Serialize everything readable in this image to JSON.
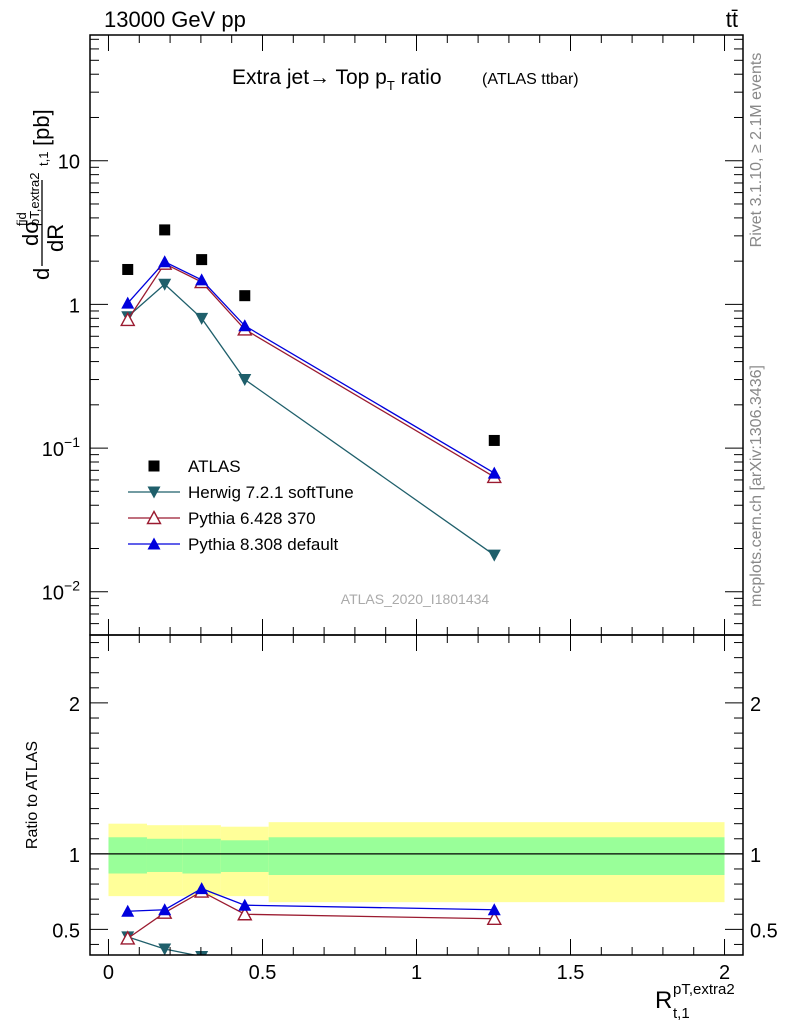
{
  "header": {
    "left": "13000 GeV pp",
    "right": "tt̄"
  },
  "side_labels": {
    "rivet": "Rivet 3.1.10, ≥ 2.1M events",
    "mcplots": "mcplots.cern.ch [arXiv:1306.3436]"
  },
  "chart_data": [
    {
      "type": "scatter",
      "title": "Extra jet→ Top p_T ratio",
      "title_parts": {
        "main": "Extra jet",
        "arrow": "→",
        "rest": " Top p",
        "sub": "T",
        "after": " ratio",
        "small": "(ATLAS ttbar)"
      },
      "watermark": "ATLAS_2020_I1801434",
      "ylabel": "dσ^fid_{pT,extra2} / dR_{t,1} [pb]",
      "ylabel_parts": {
        "d": "d",
        "sigma": "dσ",
        "sup": "fid",
        "sub": "pT,extra2",
        "den": "dR",
        "dsub": "t,1",
        "unit": "[pb]"
      },
      "yscale": "log",
      "xlim": [
        -0.06,
        2.06
      ],
      "ylim": [
        0.005,
        75
      ],
      "ytick_labels": [
        "10^-2",
        "10^-1",
        "1",
        "10"
      ],
      "grid": false,
      "legend_position": "lower-left",
      "series": [
        {
          "name": "ATLAS",
          "color": "#000000",
          "marker": "square",
          "x": [
            0.0625,
            0.1825,
            0.3025,
            0.4425,
            1.2525
          ],
          "y": [
            1.75,
            3.3,
            2.05,
            1.15,
            0.113
          ]
        },
        {
          "name": "Herwig 7.2.1 softTune",
          "color": "#1f5f6b",
          "marker": "triangle-down",
          "x": [
            0.0625,
            0.1825,
            0.3025,
            0.4425,
            1.2525
          ],
          "y": [
            0.82,
            1.38,
            0.8,
            0.3,
            0.018
          ]
        },
        {
          "name": "Pythia 6.428 370",
          "color": "#9b1b30",
          "marker": "triangle-up-open",
          "x": [
            0.0625,
            0.1825,
            0.3025,
            0.4425,
            1.2525
          ],
          "y": [
            0.78,
            1.92,
            1.43,
            0.67,
            0.063
          ]
        },
        {
          "name": "Pythia 8.308 default",
          "color": "#0000dd",
          "marker": "triangle-up",
          "x": [
            0.0625,
            0.1825,
            0.3025,
            0.4425,
            1.2525
          ],
          "y": [
            1.02,
            1.98,
            1.48,
            0.71,
            0.067
          ]
        }
      ]
    },
    {
      "type": "line",
      "ylabel": "Ratio to ATLAS",
      "xlabel": "R_{t,1}^{pT,extra2}",
      "xlabel_parts": {
        "main": "R",
        "sub": "t,1",
        "sup": "pT,extra2"
      },
      "xlim": [
        -0.06,
        2.06
      ],
      "ylim": [
        0.33,
        2.45
      ],
      "xticks": [
        0,
        0.5,
        1,
        1.5,
        2
      ],
      "xtick_labels": [
        "0",
        "0.5",
        "1",
        "1.5",
        "2"
      ],
      "yticks": [
        0.5,
        1,
        2
      ],
      "ytick_labels": [
        "0.5",
        "1",
        "2"
      ],
      "reference_line": 1,
      "bands": {
        "edges": [
          0.0,
          0.125,
          0.24,
          0.365,
          0.52,
          2.0
        ],
        "yellow_lo": [
          0.72,
          0.72,
          0.72,
          0.72,
          0.68
        ],
        "yellow_hi": [
          1.2,
          1.19,
          1.19,
          1.18,
          1.21
        ],
        "green_lo": [
          0.87,
          0.88,
          0.87,
          0.88,
          0.86
        ],
        "green_hi": [
          1.11,
          1.1,
          1.1,
          1.09,
          1.11
        ]
      },
      "series": [
        {
          "name": "Herwig 7.2.1 softTune",
          "color": "#1f5f6b",
          "marker": "triangle-down",
          "x": [
            0.0625,
            0.1825,
            0.3025
          ],
          "y": [
            0.45,
            0.37,
            0.32
          ],
          "err": [
            0.02,
            0.02,
            0.02
          ]
        },
        {
          "name": "Pythia 6.428 370",
          "color": "#9b1b30",
          "marker": "triangle-up-open",
          "x": [
            0.0625,
            0.1825,
            0.3025,
            0.4425,
            1.2525
          ],
          "y": [
            0.44,
            0.61,
            0.75,
            0.6,
            0.57
          ],
          "err": [
            0.02,
            0.02,
            0.025,
            0.025,
            0.025
          ]
        },
        {
          "name": "Pythia 8.308 default",
          "color": "#0000dd",
          "marker": "triangle-up",
          "x": [
            0.0625,
            0.1825,
            0.3025,
            0.4425,
            1.2525
          ],
          "y": [
            0.62,
            0.63,
            0.77,
            0.66,
            0.63
          ],
          "err": [
            0.025,
            0.02,
            0.025,
            0.03,
            0.03
          ]
        }
      ]
    }
  ]
}
